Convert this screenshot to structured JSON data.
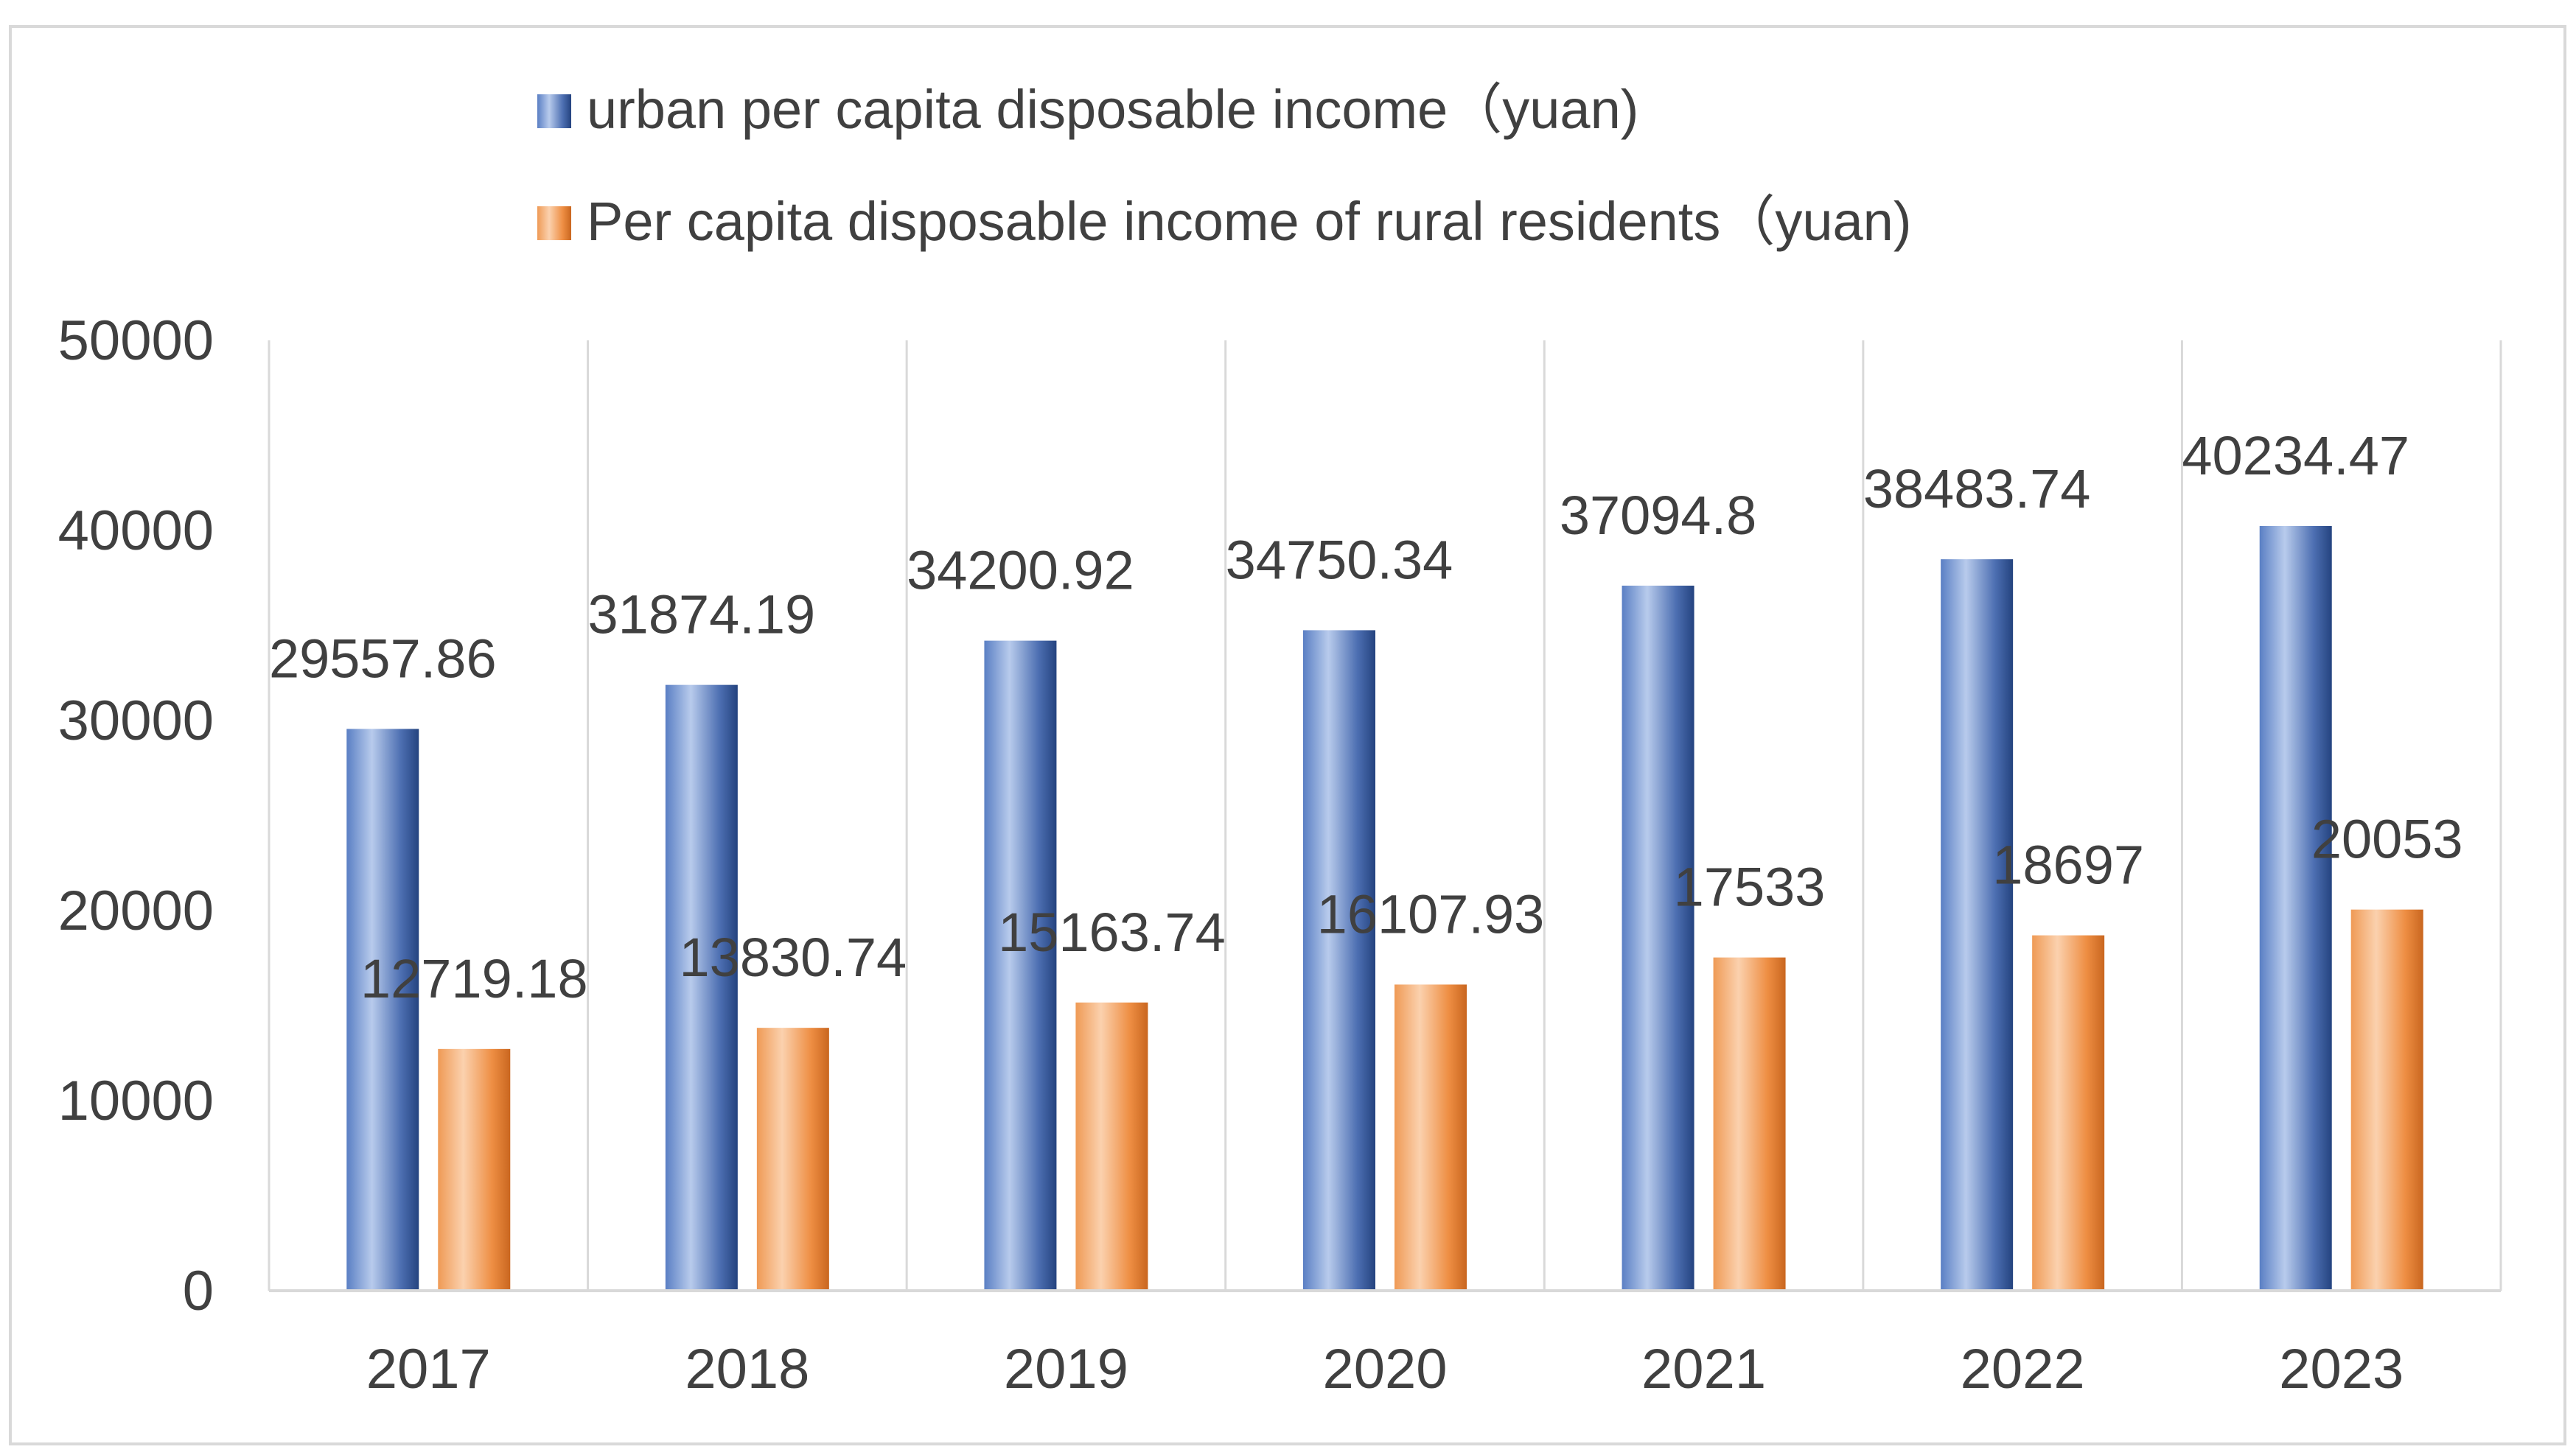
{
  "chart_data": {
    "type": "bar",
    "title": "",
    "xlabel": "",
    "ylabel": "",
    "categories": [
      "2017",
      "2018",
      "2019",
      "2020",
      "2021",
      "2022",
      "2023"
    ],
    "series": [
      {
        "name": "urban per capita disposable income（yuan)",
        "values": [
          29557.86,
          31874.19,
          34200.92,
          34750.34,
          37094.8,
          38483.74,
          40234.47
        ],
        "labels": [
          "29557.86",
          "31874.19",
          "34200.92",
          "34750.34",
          "37094.8",
          "38483.74",
          "40234.47"
        ],
        "color": "#4a6fb5"
      },
      {
        "name": "Per capita disposable income of rural residents（yuan)",
        "values": [
          12719.18,
          13830.74,
          15163.74,
          16107.93,
          17533,
          18697,
          20053
        ],
        "labels": [
          "12719.18",
          "13830.74",
          "15163.74",
          "16107.93",
          "17533",
          "18697",
          "20053"
        ],
        "color": "#ed8a3c"
      }
    ],
    "ylim": [
      0,
      50000
    ],
    "yticks": [
      "0",
      "10000",
      "20000",
      "30000",
      "40000",
      "50000"
    ],
    "grid": "vertical",
    "legend_position": "top"
  }
}
